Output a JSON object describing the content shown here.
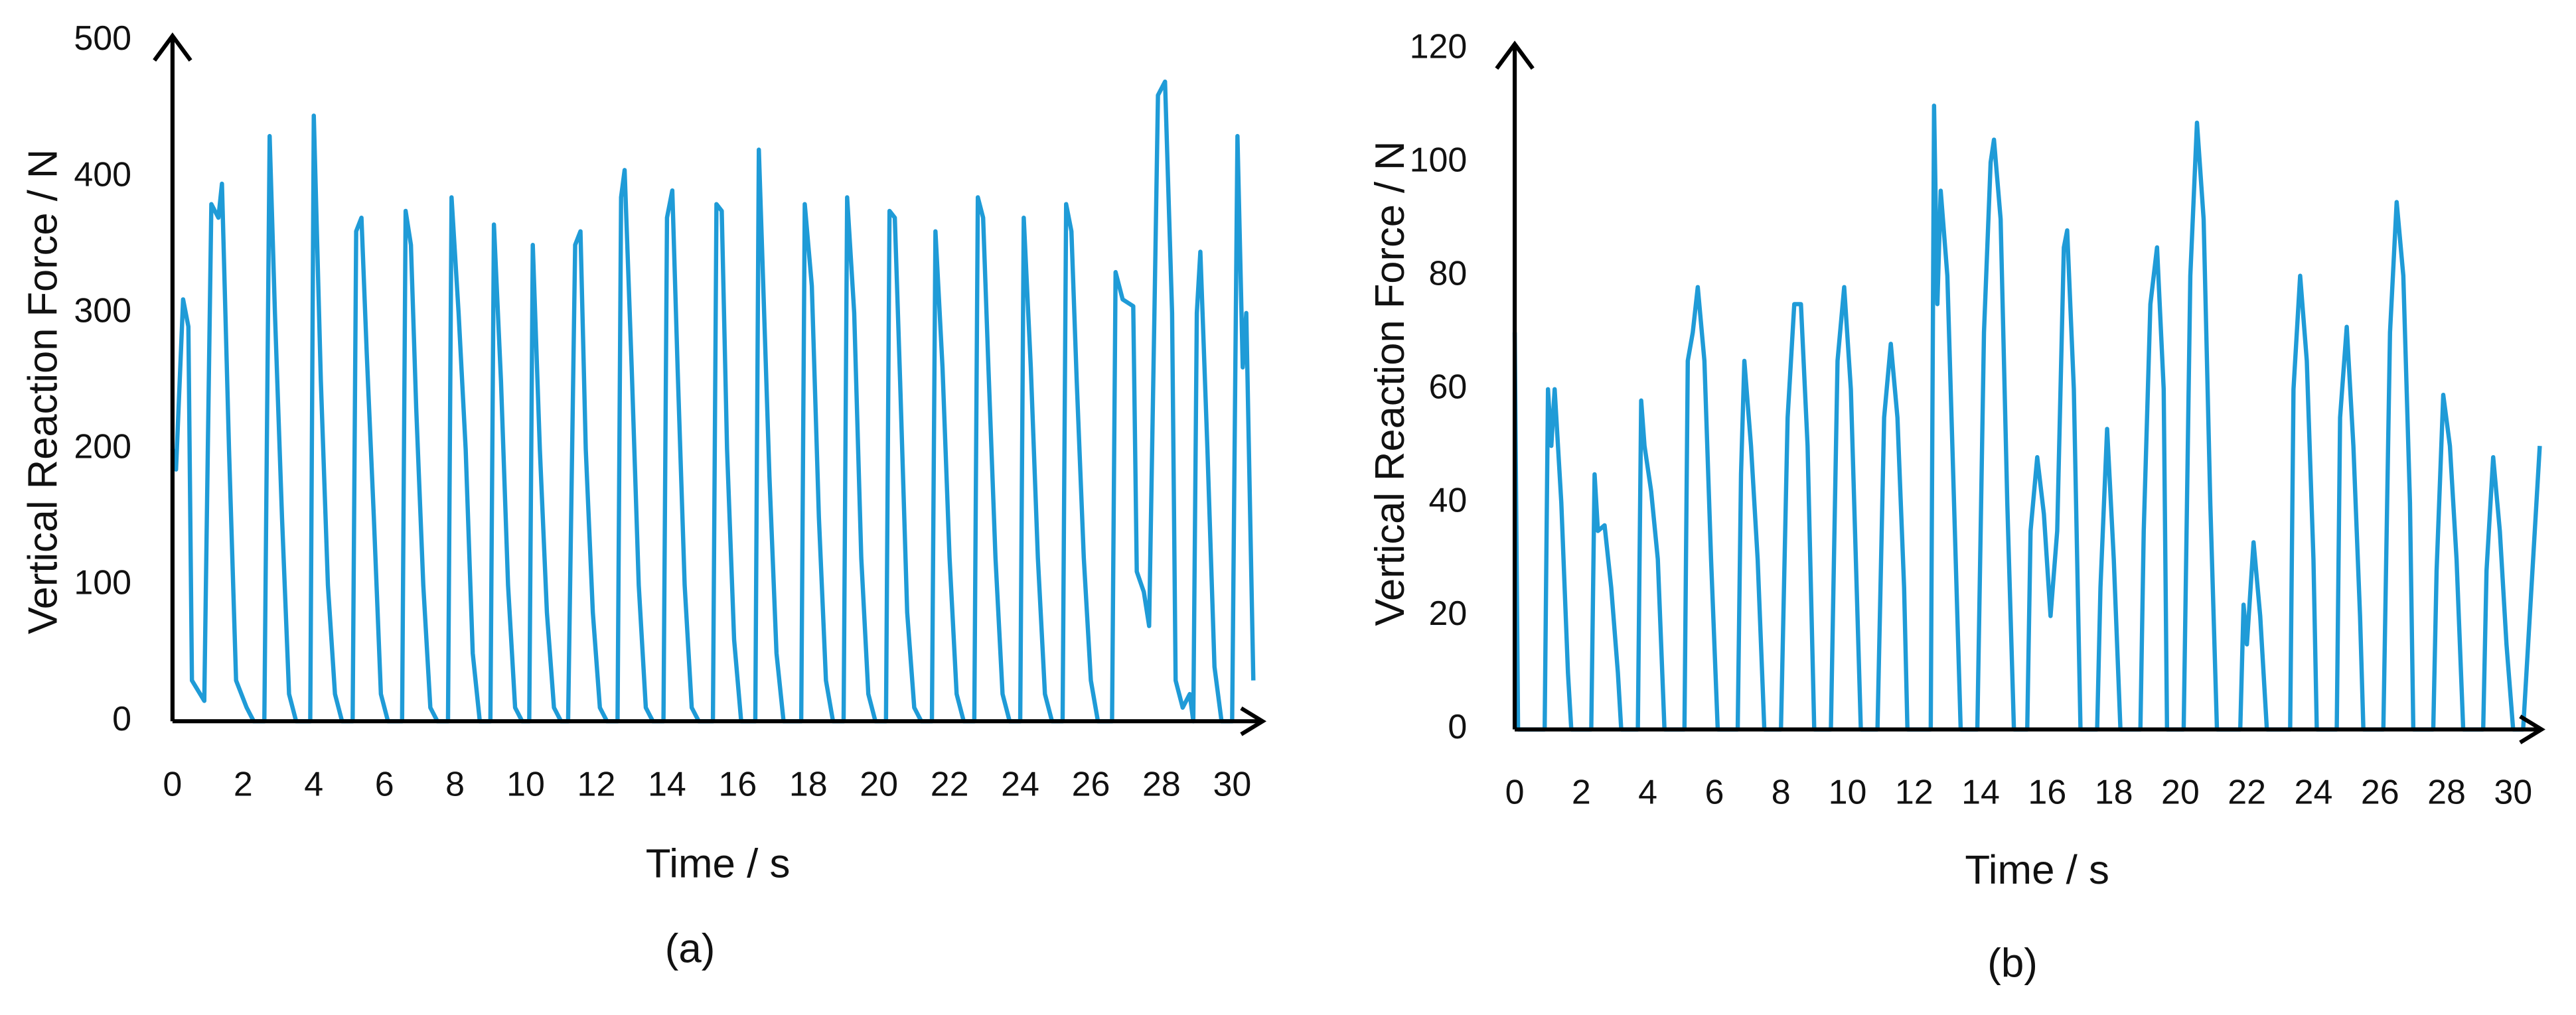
{
  "chart_data": [
    {
      "type": "line",
      "ylabel": "Vertical Reaction Force / N",
      "xlabel": "Time / s",
      "caption": "(a)",
      "color": "#1f9bd7",
      "xlim": [
        0,
        31
      ],
      "xticks": [
        0,
        2,
        4,
        6,
        8,
        10,
        12,
        14,
        16,
        18,
        20,
        22,
        24,
        26,
        28,
        30
      ],
      "ylim": [
        0,
        500
      ],
      "yticks": [
        0,
        100,
        200,
        300,
        400,
        500
      ],
      "x": [
        0,
        0.1,
        0.3,
        0.45,
        0.55,
        0.9,
        1.0,
        1.1,
        1.3,
        1.4,
        1.6,
        1.8,
        2.1,
        2.3,
        2.6,
        2.75,
        2.9,
        3.1,
        3.3,
        3.5,
        3.9,
        4.0,
        4.2,
        4.4,
        4.6,
        4.8,
        5.1,
        5.2,
        5.35,
        5.5,
        5.7,
        5.9,
        6.1,
        6.5,
        6.6,
        6.75,
        6.9,
        7.1,
        7.3,
        7.5,
        7.8,
        7.9,
        8.1,
        8.3,
        8.5,
        8.7,
        9.0,
        9.1,
        9.3,
        9.5,
        9.7,
        9.9,
        10.1,
        10.2,
        10.4,
        10.6,
        10.8,
        11.0,
        11.2,
        11.4,
        11.55,
        11.7,
        11.9,
        12.1,
        12.3,
        12.6,
        12.7,
        12.8,
        13.0,
        13.2,
        13.4,
        13.6,
        13.9,
        14.0,
        14.15,
        14.3,
        14.5,
        14.7,
        14.9,
        15.3,
        15.4,
        15.55,
        15.7,
        15.9,
        16.1,
        16.5,
        16.6,
        16.75,
        16.9,
        17.1,
        17.3,
        17.8,
        17.9,
        18.1,
        18.3,
        18.5,
        18.7,
        19.0,
        19.1,
        19.3,
        19.5,
        19.7,
        19.9,
        20.2,
        20.3,
        20.45,
        20.6,
        20.8,
        21.0,
        21.2,
        21.5,
        21.6,
        21.8,
        22.0,
        22.2,
        22.4,
        22.7,
        22.8,
        22.95,
        23.1,
        23.3,
        23.5,
        23.7,
        24.0,
        24.1,
        24.3,
        24.5,
        24.7,
        24.9,
        25.2,
        25.3,
        25.45,
        25.6,
        25.8,
        26.0,
        26.2,
        26.6,
        26.7,
        26.9,
        27.2,
        27.3,
        27.5,
        27.65,
        27.8,
        27.9,
        28.1,
        28.3,
        28.4,
        28.6,
        28.8,
        28.9,
        29.0,
        29.1,
        29.3,
        29.5,
        29.7,
        30.0,
        30.15,
        30.3,
        30.4,
        30.6
      ],
      "values": [
        200,
        185,
        310,
        290,
        30,
        15,
        200,
        380,
        370,
        395,
        200,
        30,
        10,
        0,
        0,
        430,
        300,
        150,
        20,
        0,
        0,
        445,
        250,
        100,
        20,
        0,
        0,
        360,
        370,
        270,
        150,
        20,
        0,
        0,
        375,
        350,
        230,
        100,
        10,
        0,
        0,
        385,
        300,
        200,
        50,
        0,
        0,
        365,
        250,
        100,
        10,
        0,
        0,
        350,
        200,
        80,
        10,
        0,
        0,
        350,
        360,
        200,
        80,
        10,
        0,
        0,
        385,
        405,
        260,
        100,
        10,
        0,
        0,
        370,
        390,
        260,
        100,
        10,
        0,
        0,
        380,
        375,
        200,
        60,
        0,
        0,
        420,
        300,
        180,
        50,
        0,
        0,
        380,
        320,
        150,
        30,
        0,
        0,
        385,
        300,
        120,
        20,
        0,
        0,
        375,
        370,
        250,
        80,
        10,
        0,
        0,
        360,
        260,
        120,
        20,
        0,
        0,
        385,
        370,
        260,
        120,
        20,
        0,
        0,
        370,
        260,
        120,
        20,
        0,
        0,
        380,
        360,
        250,
        120,
        30,
        0,
        0,
        330,
        310,
        305,
        110,
        95,
        70,
        300,
        460,
        470,
        300,
        30,
        10,
        20,
        0,
        300,
        345,
        200,
        40,
        0,
        0,
        430,
        260,
        300,
        30
      ]
    },
    {
      "type": "line",
      "ylabel": "Vertical Reaction Force / N",
      "xlabel": "Time / s",
      "caption": "(b)",
      "color": "#1f9bd7",
      "xlim": [
        0,
        31
      ],
      "xticks": [
        0,
        2,
        4,
        6,
        8,
        10,
        12,
        14,
        16,
        18,
        20,
        22,
        24,
        26,
        28,
        30
      ],
      "ylim": [
        0,
        120
      ],
      "yticks": [
        0,
        20,
        40,
        60,
        80,
        100,
        120
      ],
      "x": [
        0,
        0.1,
        0.9,
        1.0,
        1.1,
        1.2,
        1.4,
        1.6,
        1.7,
        2.3,
        2.4,
        2.5,
        2.7,
        2.9,
        3.1,
        3.2,
        3.7,
        3.8,
        3.9,
        4.1,
        4.3,
        4.5,
        5.1,
        5.2,
        5.35,
        5.5,
        5.7,
        5.9,
        6.1,
        6.7,
        6.8,
        6.9,
        7.1,
        7.3,
        7.5,
        8.0,
        8.2,
        8.4,
        8.6,
        8.8,
        9.0,
        9.5,
        9.7,
        9.9,
        10.1,
        10.3,
        10.4,
        10.9,
        11.1,
        11.3,
        11.5,
        11.7,
        11.8,
        12.5,
        12.6,
        12.7,
        12.8,
        13.0,
        13.2,
        13.4,
        13.9,
        14.1,
        14.3,
        14.4,
        14.6,
        14.8,
        15.0,
        15.4,
        15.5,
        15.7,
        15.9,
        16.1,
        16.3,
        16.5,
        16.6,
        16.8,
        17.0,
        17.5,
        17.6,
        17.8,
        18.0,
        18.2,
        18.8,
        18.9,
        19.1,
        19.3,
        19.5,
        19.6,
        20.1,
        20.3,
        20.5,
        20.7,
        20.9,
        21.1,
        21.8,
        21.9,
        22.0,
        22.2,
        22.4,
        22.6,
        23.3,
        23.4,
        23.6,
        23.8,
        24.0,
        24.1,
        24.7,
        24.8,
        25.0,
        25.2,
        25.4,
        25.5,
        26.1,
        26.3,
        26.5,
        26.7,
        26.9,
        27.0,
        27.6,
        27.7,
        27.9,
        28.1,
        28.3,
        28.5,
        29.1,
        29.2,
        29.4,
        29.6,
        29.8,
        30.0,
        30.3,
        30.5,
        30.8
      ],
      "values": [
        70,
        0,
        0,
        60,
        50,
        60,
        40,
        10,
        0,
        0,
        45,
        35,
        36,
        25,
        10,
        0,
        0,
        58,
        50,
        42,
        30,
        0,
        0,
        65,
        70,
        78,
        65,
        30,
        0,
        0,
        45,
        65,
        50,
        30,
        0,
        0,
        55,
        75,
        75,
        50,
        0,
        0,
        65,
        78,
        60,
        20,
        0,
        0,
        55,
        68,
        55,
        25,
        0,
        0,
        110,
        75,
        95,
        80,
        40,
        0,
        0,
        70,
        100,
        104,
        90,
        40,
        0,
        0,
        35,
        48,
        38,
        20,
        35,
        85,
        88,
        60,
        0,
        0,
        25,
        53,
        30,
        0,
        0,
        35,
        75,
        85,
        60,
        0,
        0,
        80,
        107,
        90,
        40,
        0,
        0,
        22,
        15,
        33,
        20,
        0,
        0,
        60,
        80,
        65,
        30,
        0,
        0,
        55,
        71,
        50,
        20,
        0,
        0,
        70,
        93,
        80,
        40,
        0,
        0,
        28,
        59,
        50,
        30,
        0,
        0,
        28,
        48,
        35,
        15,
        0,
        0,
        20,
        50
      ]
    }
  ]
}
